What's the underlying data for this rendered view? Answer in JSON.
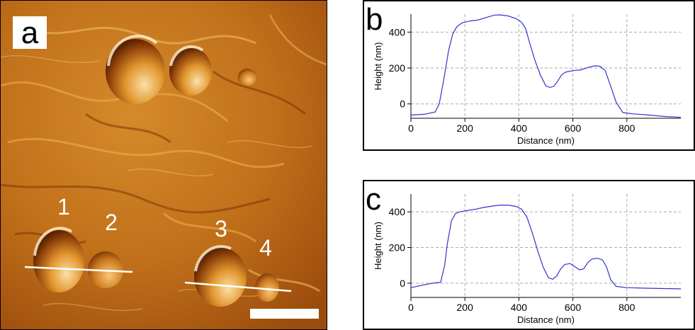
{
  "panel_a": {
    "letter": "a",
    "particle_labels": [
      "1",
      "2",
      "3",
      "4"
    ],
    "colors": {
      "bg_dark": "#a0500c",
      "bg_mid": "#c8781e",
      "bg_light": "#f0b250",
      "label_box": "#ffffff",
      "line": "#ffffff"
    }
  },
  "chart_data": [
    {
      "type": "line",
      "letter": "b",
      "title": "",
      "xlabel": "Distance (nm)",
      "ylabel": "Height (nm)",
      "xlim": [
        0,
        1000
      ],
      "ylim": [
        -80,
        500
      ],
      "xticks": [
        0,
        200,
        400,
        600,
        800
      ],
      "yticks": [
        0,
        200,
        400
      ],
      "grid": true,
      "line_color": "#3333cc",
      "series": [
        {
          "x": [
            0,
            50,
            90,
            105,
            120,
            140,
            155,
            170,
            190,
            220,
            250,
            280,
            310,
            330,
            360,
            390,
            410,
            425,
            440,
            460,
            480,
            500,
            515,
            530,
            545,
            560,
            575,
            600,
            630,
            660,
            680,
            700,
            720,
            740,
            760,
            785,
            820,
            880,
            940,
            1000
          ],
          "y": [
            -62,
            -58,
            -45,
            0,
            120,
            300,
            390,
            430,
            452,
            462,
            468,
            482,
            495,
            496,
            490,
            475,
            455,
            420,
            340,
            240,
            160,
            100,
            92,
            98,
            130,
            165,
            178,
            185,
            190,
            205,
            212,
            210,
            185,
            100,
            10,
            -48,
            -55,
            -62,
            -70,
            -75
          ]
        }
      ]
    },
    {
      "type": "line",
      "letter": "c",
      "title": "",
      "xlabel": "Distance (nm)",
      "ylabel": "Height (nm)",
      "xlim": [
        0,
        1000
      ],
      "ylim": [
        -80,
        500
      ],
      "xticks": [
        0,
        200,
        400,
        600,
        800
      ],
      "yticks": [
        0,
        200,
        400
      ],
      "grid": true,
      "line_color": "#3333cc",
      "series": [
        {
          "x": [
            0,
            40,
            80,
            110,
            125,
            135,
            150,
            165,
            180,
            210,
            240,
            270,
            300,
            330,
            360,
            390,
            410,
            430,
            450,
            470,
            490,
            510,
            525,
            540,
            555,
            570,
            590,
            610,
            625,
            640,
            655,
            670,
            690,
            710,
            725,
            740,
            760,
            800,
            860,
            920,
            1000
          ],
          "y": [
            -25,
            -12,
            0,
            5,
            100,
            220,
            350,
            390,
            400,
            408,
            415,
            425,
            432,
            438,
            438,
            430,
            415,
            370,
            280,
            180,
            90,
            30,
            22,
            40,
            80,
            105,
            110,
            90,
            75,
            80,
            115,
            135,
            140,
            130,
            90,
            20,
            -18,
            -25,
            -28,
            -30,
            -32
          ]
        }
      ]
    }
  ]
}
